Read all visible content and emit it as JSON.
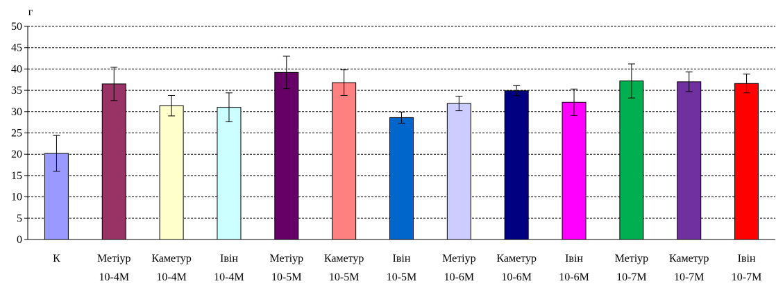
{
  "chart_data": {
    "type": "bar",
    "title": "",
    "unit_label": "г",
    "xlabel": "",
    "ylabel": "",
    "ylim": [
      0,
      50
    ],
    "yticks": [
      0,
      5,
      10,
      15,
      20,
      25,
      30,
      35,
      40,
      45,
      50
    ],
    "grid": "horizontal-dashed",
    "legend": "none",
    "categories": [
      {
        "line1": "К",
        "line2": ""
      },
      {
        "line1": "Метіур",
        "line2": "10-4М"
      },
      {
        "line1": "Каметур",
        "line2": "10-4М"
      },
      {
        "line1": "Івін",
        "line2": "10-4М"
      },
      {
        "line1": "Метіур",
        "line2": "10-5М"
      },
      {
        "line1": "Каметур",
        "line2": "10-5М"
      },
      {
        "line1": "Івін",
        "line2": "10-5М"
      },
      {
        "line1": "Метіур",
        "line2": "10-6М"
      },
      {
        "line1": "Каметур",
        "line2": "10-6М"
      },
      {
        "line1": "Івін",
        "line2": "10-6М"
      },
      {
        "line1": "Метіур",
        "line2": "10-7М"
      },
      {
        "line1": "Каметур",
        "line2": "10-7М"
      },
      {
        "line1": "Івін",
        "line2": "10-7М"
      }
    ],
    "values": [
      20.2,
      36.5,
      31.4,
      31.0,
      39.2,
      36.8,
      28.6,
      31.9,
      34.9,
      32.2,
      37.2,
      37.0,
      36.6
    ],
    "errors": [
      4.2,
      3.9,
      2.4,
      3.4,
      3.8,
      3.0,
      1.3,
      1.7,
      1.2,
      3.1,
      4.0,
      2.3,
      2.2
    ],
    "colors": [
      "#9999FF",
      "#993366",
      "#FFFFCC",
      "#CCFFFF",
      "#660066",
      "#FF8080",
      "#0066CC",
      "#CCCCFF",
      "#000080",
      "#FF00FF",
      "#00B050",
      "#7030A0",
      "#FF0000"
    ]
  }
}
